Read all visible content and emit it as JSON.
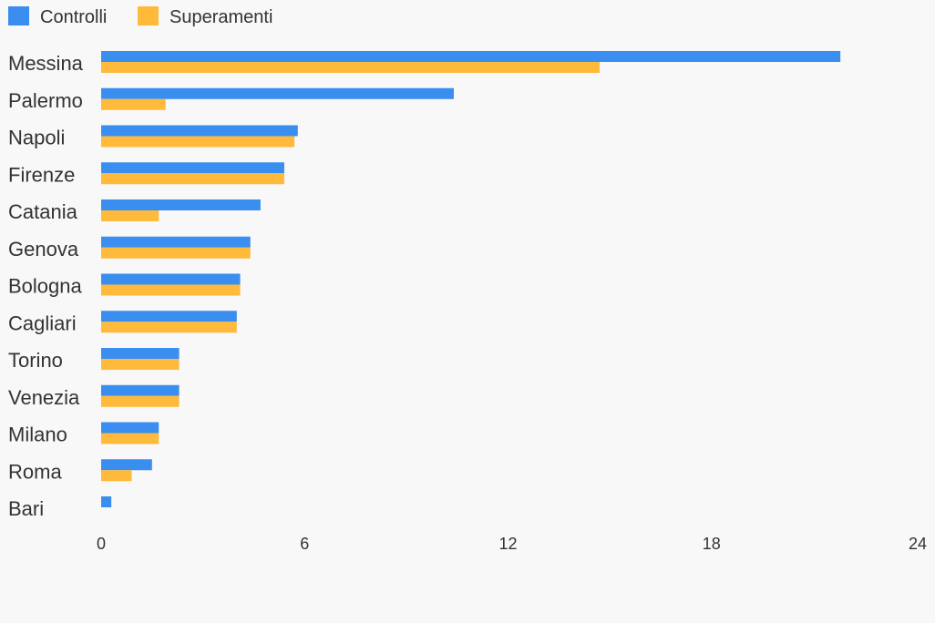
{
  "chart_data": {
    "type": "bar",
    "orientation": "horizontal",
    "title": "",
    "xlabel": "",
    "ylabel": "",
    "xlim": [
      0,
      24
    ],
    "ticks": [
      "0",
      "6",
      "12",
      "18",
      "24"
    ],
    "tick_values": [
      0,
      6,
      12,
      18,
      24
    ],
    "grid": false,
    "legend_position": "top-left",
    "categories": [
      "Messina",
      "Palermo",
      "Napoli",
      "Firenze",
      "Catania",
      "Genova",
      "Bologna",
      "Cagliari",
      "Torino",
      "Venezia",
      "Milano",
      "Roma",
      "Bari"
    ],
    "series": [
      {
        "name": "Controlli",
        "color": "#3a8ef0",
        "values": [
          21.8,
          10.4,
          5.8,
          5.4,
          4.7,
          4.4,
          4.1,
          4.0,
          2.3,
          2.3,
          1.7,
          1.5,
          0.3
        ]
      },
      {
        "name": "Superamenti",
        "color": "#ffb93b",
        "values": [
          14.7,
          1.9,
          5.7,
          5.4,
          1.7,
          4.4,
          4.1,
          4.0,
          2.3,
          2.3,
          1.7,
          0.9,
          0
        ]
      }
    ]
  }
}
